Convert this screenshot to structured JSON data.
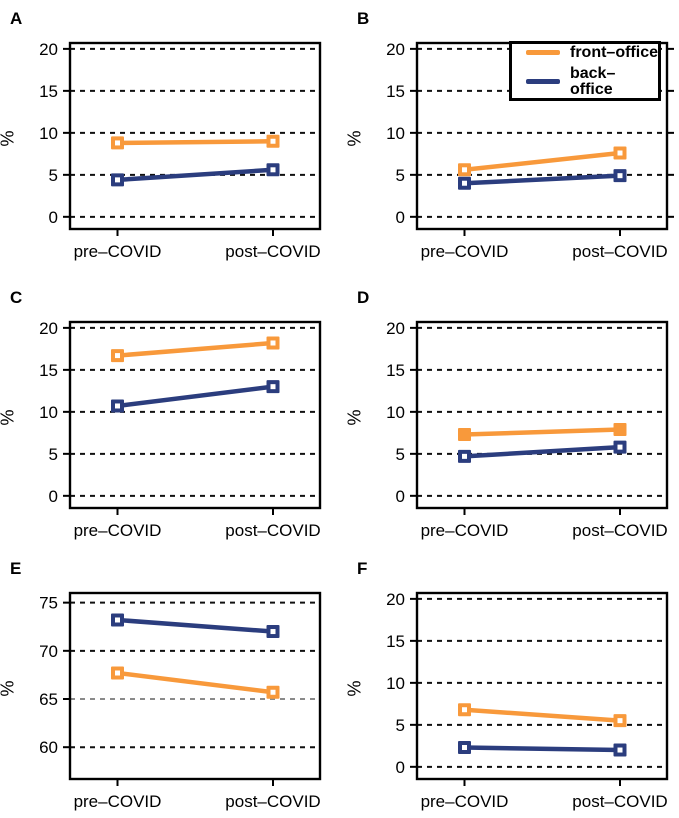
{
  "figure": {
    "ylabel": "%",
    "x_categories": [
      "pre–COVID",
      "post–COVID"
    ],
    "colors": {
      "front": "#F8993B",
      "back": "#2B3D7E"
    },
    "gridline_color": "#111111",
    "muted_gridline_color": "#8a8a8a",
    "legend": {
      "items": [
        {
          "label": "front–office",
          "color": "#F8993B"
        },
        {
          "label": "back–office",
          "color": "#2B3D7E"
        }
      ]
    }
  },
  "chart_data": [
    {
      "type": "line",
      "label": "A",
      "categories": [
        "pre-COVID",
        "post-COVID"
      ],
      "yticks": [
        0,
        5,
        10,
        15,
        20
      ],
      "ylim": [
        -1.45,
        20.7
      ],
      "ylabel": "%",
      "grid": "dashed-horizontal",
      "series": [
        {
          "name": "front-office",
          "key": "front",
          "values": [
            8.8,
            9.0
          ],
          "marker": "open-square"
        },
        {
          "name": "back-office",
          "key": "back",
          "values": [
            4.4,
            5.6
          ],
          "marker": "open-square"
        }
      ]
    },
    {
      "type": "line",
      "label": "B",
      "categories": [
        "pre-COVID",
        "post-COVID"
      ],
      "yticks": [
        0,
        5,
        10,
        15,
        20
      ],
      "ylim": [
        -1.45,
        20.7
      ],
      "ylabel": "%",
      "grid": "dashed-horizontal",
      "legend_position": "top-right",
      "right_ticks": true,
      "series": [
        {
          "name": "front-office",
          "key": "front",
          "values": [
            5.6,
            7.6
          ],
          "marker": "open-square"
        },
        {
          "name": "back-office",
          "key": "back",
          "values": [
            4.0,
            4.9
          ],
          "marker": "open-square"
        }
      ]
    },
    {
      "type": "line",
      "label": "C",
      "categories": [
        "pre-COVID",
        "post-COVID"
      ],
      "yticks": [
        0,
        5,
        10,
        15,
        20
      ],
      "ylim": [
        -1.45,
        20.7
      ],
      "ylabel": "%",
      "grid": "dashed-horizontal",
      "series": [
        {
          "name": "front-office",
          "key": "front",
          "values": [
            16.7,
            18.2
          ],
          "marker": "open-square"
        },
        {
          "name": "back-office",
          "key": "back",
          "values": [
            10.7,
            13.0
          ],
          "marker": "open-square"
        }
      ]
    },
    {
      "type": "line",
      "label": "D",
      "categories": [
        "pre-COVID",
        "post-COVID"
      ],
      "yticks": [
        0,
        5,
        10,
        15,
        20
      ],
      "ylim": [
        -1.45,
        20.7
      ],
      "ylabel": "%",
      "grid": "dashed-horizontal",
      "series": [
        {
          "name": "front-office",
          "key": "front",
          "values": [
            7.3,
            7.9
          ],
          "marker": "solid-square"
        },
        {
          "name": "back-office",
          "key": "back",
          "values": [
            4.7,
            5.8
          ],
          "marker": "open-square"
        }
      ]
    },
    {
      "type": "line",
      "label": "E",
      "categories": [
        "pre-COVID",
        "post-COVID"
      ],
      "yticks": [
        60,
        65,
        70,
        75
      ],
      "ylim": [
        56.7,
        76.0
      ],
      "muted_gridline": 65,
      "ylabel": "%",
      "grid": "dashed-horizontal",
      "series": [
        {
          "name": "front-office",
          "key": "front",
          "values": [
            67.7,
            65.7
          ],
          "marker": "open-square"
        },
        {
          "name": "back-office",
          "key": "back",
          "values": [
            73.2,
            72.0
          ],
          "marker": "open-square"
        }
      ]
    },
    {
      "type": "line",
      "label": "F",
      "categories": [
        "pre-COVID",
        "post-COVID"
      ],
      "yticks": [
        0,
        5,
        10,
        15,
        20
      ],
      "ylim": [
        -1.45,
        20.7
      ],
      "ylabel": "%",
      "grid": "dashed-horizontal",
      "series": [
        {
          "name": "front-office",
          "key": "front",
          "values": [
            6.8,
            5.5
          ],
          "marker": "open-square"
        },
        {
          "name": "back-office",
          "key": "back",
          "values": [
            2.3,
            2.0
          ],
          "marker": "open-square"
        }
      ]
    }
  ]
}
